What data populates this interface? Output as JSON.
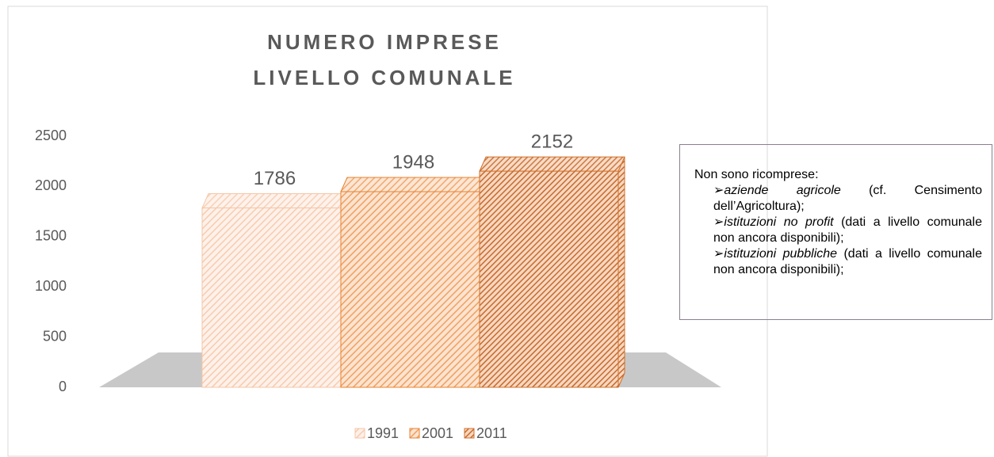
{
  "chart_data": {
    "type": "bar3d",
    "title": [
      "NUMERO IMPRESE",
      "LIVELLO COMUNALE"
    ],
    "categories": [
      "1991",
      "2001",
      "2011"
    ],
    "values": [
      1786,
      1948,
      2152
    ],
    "colors": [
      "#f8cbad",
      "#f4a460",
      "#e07b30"
    ],
    "ylim": [
      0,
      2500
    ],
    "yticks": [
      0,
      500,
      1000,
      1500,
      2000,
      2500
    ],
    "grid": false,
    "legend": "bottom"
  },
  "note": {
    "heading": "Non sono ricomprese:",
    "items": [
      {
        "term": "aziende agricole",
        "rest": " (cf. Censimento dell’Agricoltura);"
      },
      {
        "term": "istituzioni no profit",
        "rest": " (dati a livello comunale non ancora disponibili);"
      },
      {
        "term": "istituzioni pubbliche",
        "rest": " (dati a livello comunale non ancora disponibili);"
      }
    ]
  }
}
